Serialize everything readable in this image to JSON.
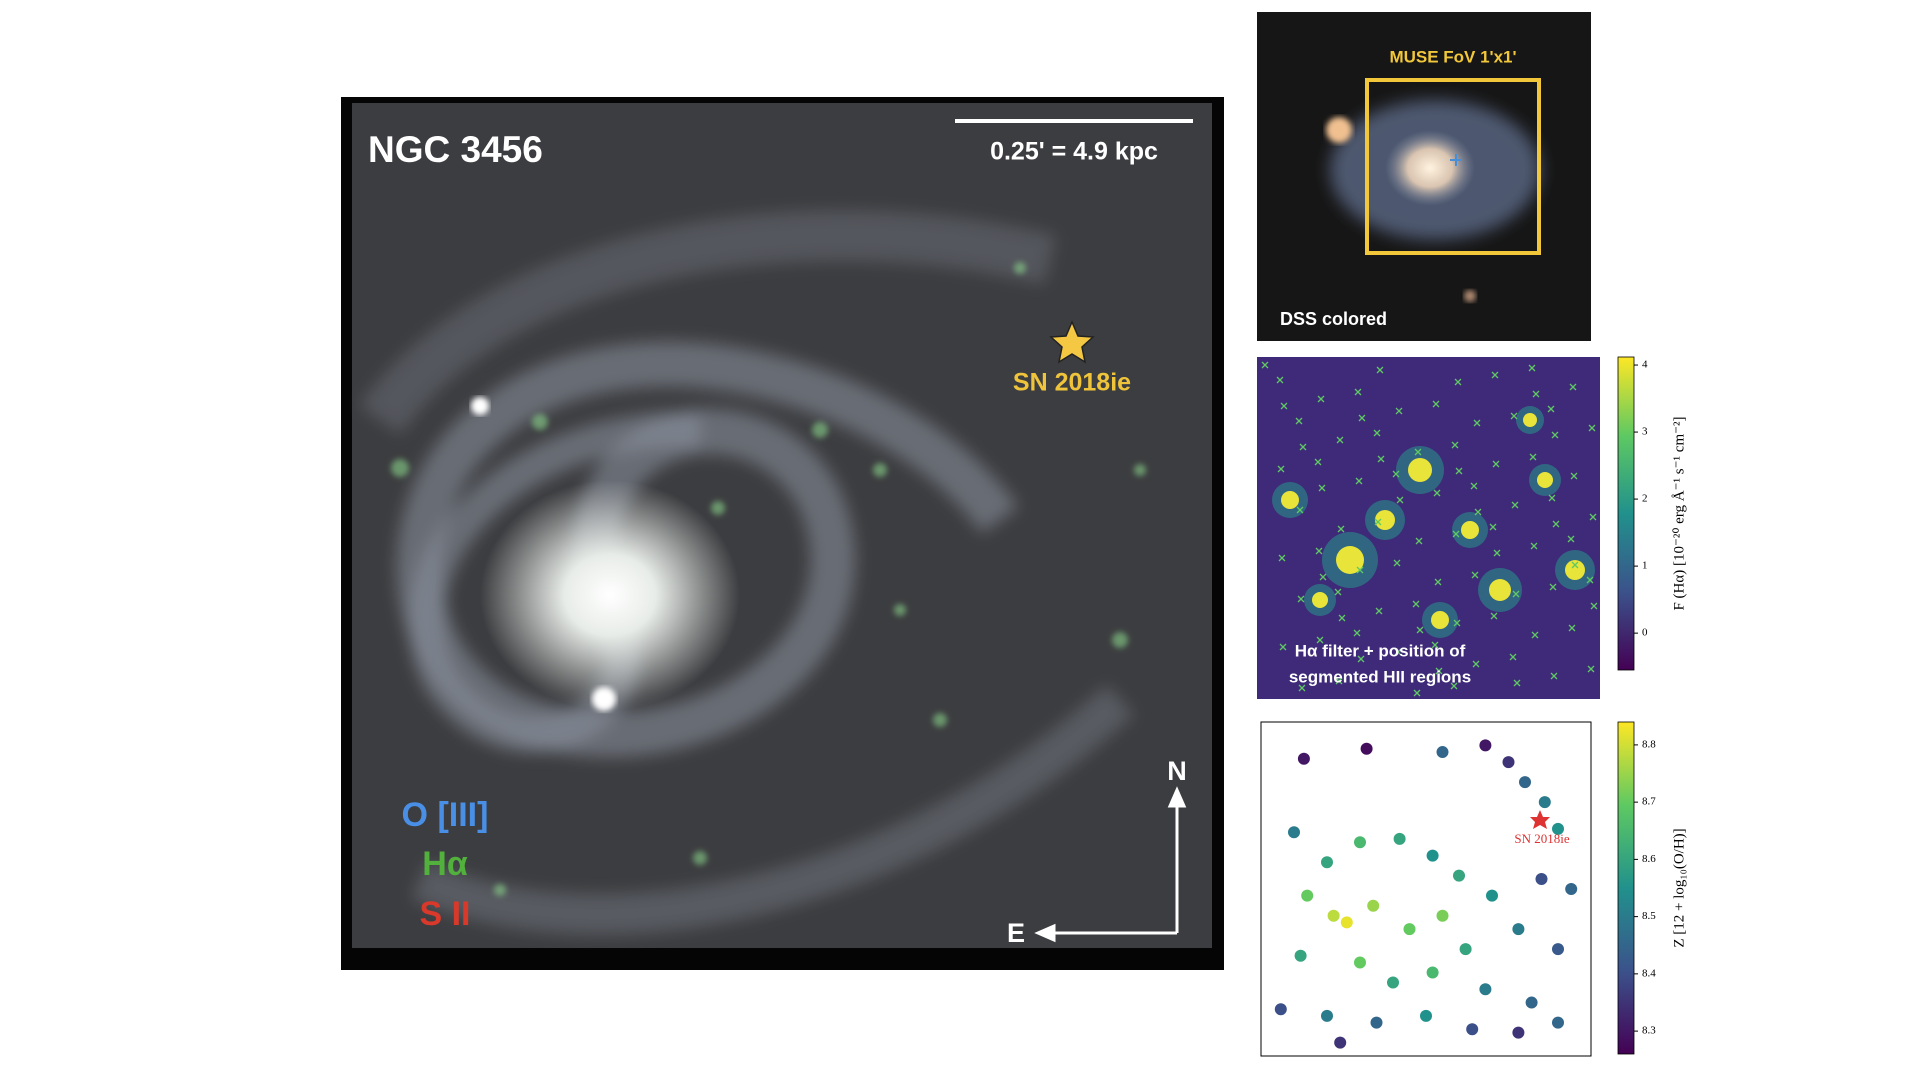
{
  "main_panel": {
    "title": "NGC 3456",
    "scale_bar": "0.25' = 4.9 kpc",
    "sn_label": "SN 2018ie",
    "legend": [
      "O [III]",
      "Hα",
      "S II"
    ],
    "compass": {
      "north": "N",
      "east": "E"
    }
  },
  "dss_panel": {
    "fov_label": "MUSE FoV 1'x1'",
    "caption": "DSS colored"
  },
  "halpha_panel": {
    "caption_lines": [
      "Hα filter + position of",
      "segmented HII regions"
    ],
    "colorbar": {
      "label": "F (Hα) [10⁻²⁰ erg Å⁻¹ s⁻¹ cm⁻²]",
      "lim": [
        -0.55,
        4.12
      ],
      "ticks": [
        0,
        1,
        2,
        3,
        4
      ]
    }
  },
  "metallicity_panel": {
    "sn_label": "SN 2018ie",
    "colorbar": {
      "label": "Z [12 + log₁₀(O/H)]",
      "lim": [
        8.26,
        8.84
      ],
      "ticks": [
        8.3,
        8.4,
        8.5,
        8.6,
        8.7,
        8.8
      ]
    },
    "points": [
      {
        "x": 0.13,
        "y": 0.11,
        "z": 8.3
      },
      {
        "x": 0.32,
        "y": 0.08,
        "z": 8.28
      },
      {
        "x": 0.55,
        "y": 0.09,
        "z": 8.45
      },
      {
        "x": 0.68,
        "y": 0.07,
        "z": 8.3
      },
      {
        "x": 0.75,
        "y": 0.12,
        "z": 8.35
      },
      {
        "x": 0.8,
        "y": 0.18,
        "z": 8.45
      },
      {
        "x": 0.86,
        "y": 0.24,
        "z": 8.5
      },
      {
        "x": 0.9,
        "y": 0.32,
        "z": 8.55
      },
      {
        "x": 0.1,
        "y": 0.33,
        "z": 8.5
      },
      {
        "x": 0.2,
        "y": 0.42,
        "z": 8.6
      },
      {
        "x": 0.3,
        "y": 0.36,
        "z": 8.65
      },
      {
        "x": 0.42,
        "y": 0.35,
        "z": 8.6
      },
      {
        "x": 0.52,
        "y": 0.4,
        "z": 8.55
      },
      {
        "x": 0.6,
        "y": 0.46,
        "z": 8.6
      },
      {
        "x": 0.7,
        "y": 0.52,
        "z": 8.55
      },
      {
        "x": 0.85,
        "y": 0.47,
        "z": 8.4
      },
      {
        "x": 0.94,
        "y": 0.5,
        "z": 8.45
      },
      {
        "x": 0.14,
        "y": 0.52,
        "z": 8.7
      },
      {
        "x": 0.22,
        "y": 0.58,
        "z": 8.78
      },
      {
        "x": 0.26,
        "y": 0.6,
        "z": 8.82
      },
      {
        "x": 0.34,
        "y": 0.55,
        "z": 8.75
      },
      {
        "x": 0.45,
        "y": 0.62,
        "z": 8.7
      },
      {
        "x": 0.55,
        "y": 0.58,
        "z": 8.72
      },
      {
        "x": 0.62,
        "y": 0.68,
        "z": 8.6
      },
      {
        "x": 0.78,
        "y": 0.62,
        "z": 8.5
      },
      {
        "x": 0.9,
        "y": 0.68,
        "z": 8.42
      },
      {
        "x": 0.12,
        "y": 0.7,
        "z": 8.6
      },
      {
        "x": 0.3,
        "y": 0.72,
        "z": 8.7
      },
      {
        "x": 0.4,
        "y": 0.78,
        "z": 8.6
      },
      {
        "x": 0.52,
        "y": 0.75,
        "z": 8.65
      },
      {
        "x": 0.68,
        "y": 0.8,
        "z": 8.5
      },
      {
        "x": 0.82,
        "y": 0.84,
        "z": 8.45
      },
      {
        "x": 0.06,
        "y": 0.86,
        "z": 8.4
      },
      {
        "x": 0.2,
        "y": 0.88,
        "z": 8.5
      },
      {
        "x": 0.35,
        "y": 0.9,
        "z": 8.45
      },
      {
        "x": 0.5,
        "y": 0.88,
        "z": 8.55
      },
      {
        "x": 0.64,
        "y": 0.92,
        "z": 8.4
      },
      {
        "x": 0.78,
        "y": 0.93,
        "z": 8.35
      },
      {
        "x": 0.9,
        "y": 0.9,
        "z": 8.45
      },
      {
        "x": 0.24,
        "y": 0.96,
        "z": 8.35
      }
    ]
  }
}
